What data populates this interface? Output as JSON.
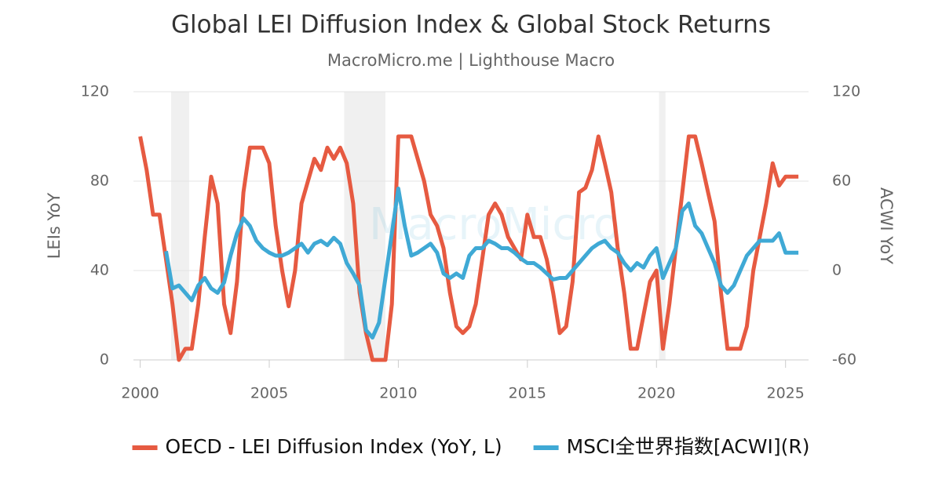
{
  "chart_data": {
    "type": "line",
    "title": "Global LEI Diffusion Index & Global Stock Returns",
    "subtitle": "MacroMicro.me | Lighthouse Macro",
    "watermark": "MacroMicro",
    "y_label": "LEIs YoY",
    "y2_label": "ACWI YoY",
    "xlim": [
      1999.8,
      2025.8
    ],
    "xticks": [
      2000,
      2005,
      2010,
      2015,
      2020,
      2025
    ],
    "ylim": [
      0,
      120
    ],
    "yticks": [
      0,
      40,
      80,
      120
    ],
    "y2lim": [
      -60,
      120
    ],
    "y2ticks": [
      -60,
      0,
      60,
      120
    ],
    "grid": true,
    "legend": "bottom",
    "shaded_x": [
      [
        2001.2,
        2001.9
      ],
      [
        2007.9,
        2009.5
      ],
      [
        2020.1,
        2020.35
      ]
    ],
    "x": [
      2000,
      2000.25,
      2000.5,
      2000.75,
      2001,
      2001.25,
      2001.5,
      2001.75,
      2002,
      2002.25,
      2002.5,
      2002.75,
      2003,
      2003.25,
      2003.5,
      2003.75,
      2004,
      2004.25,
      2004.5,
      2004.75,
      2005,
      2005.25,
      2005.5,
      2005.75,
      2006,
      2006.25,
      2006.5,
      2006.75,
      2007,
      2007.25,
      2007.5,
      2007.75,
      2008,
      2008.25,
      2008.5,
      2008.75,
      2009,
      2009.25,
      2009.5,
      2009.75,
      2010,
      2010.25,
      2010.5,
      2010.75,
      2011,
      2011.25,
      2011.5,
      2011.75,
      2012,
      2012.25,
      2012.5,
      2012.75,
      2013,
      2013.25,
      2013.5,
      2013.75,
      2014,
      2014.25,
      2014.5,
      2014.75,
      2015,
      2015.25,
      2015.5,
      2015.75,
      2016,
      2016.25,
      2016.5,
      2016.75,
      2017,
      2017.25,
      2017.5,
      2017.75,
      2018,
      2018.25,
      2018.5,
      2018.75,
      2019,
      2019.25,
      2019.5,
      2019.75,
      2020,
      2020.25,
      2020.5,
      2020.75,
      2021,
      2021.25,
      2021.5,
      2021.75,
      2022,
      2022.25,
      2022.5,
      2022.75,
      2023,
      2023.25,
      2023.5,
      2023.75,
      2024,
      2024.25,
      2024.5,
      2024.75,
      2025,
      2025.25,
      2025.5
    ],
    "series": [
      {
        "name": "OECD - LEI Diffusion Index (YoY, L)",
        "color": "#e65a41",
        "axis": "y",
        "values": [
          100,
          85,
          65,
          65,
          45,
          25,
          0,
          5,
          5,
          25,
          55,
          82,
          70,
          25,
          12,
          35,
          75,
          95,
          95,
          95,
          88,
          60,
          40,
          24,
          40,
          70,
          80,
          90,
          85,
          95,
          90,
          95,
          88,
          70,
          30,
          12,
          0,
          0,
          0,
          25,
          100,
          100,
          100,
          90,
          80,
          65,
          60,
          50,
          30,
          15,
          12,
          15,
          25,
          45,
          65,
          70,
          65,
          55,
          50,
          45,
          65,
          55,
          55,
          45,
          30,
          12,
          15,
          35,
          75,
          77,
          85,
          100,
          88,
          75,
          50,
          30,
          5,
          5,
          20,
          35,
          40,
          5,
          25,
          50,
          75,
          100,
          100,
          88,
          75,
          62,
          30,
          5,
          5,
          5,
          15,
          40,
          55,
          70,
          88,
          78,
          82,
          82,
          82
        ]
      },
      {
        "name": "MSCI全世界指数[ACWI](R)",
        "color": "#3fa9d5",
        "axis": "y2",
        "values": [
          null,
          null,
          null,
          null,
          13,
          -12,
          -10,
          -15,
          -20,
          -10,
          -5,
          -12,
          -15,
          -8,
          10,
          25,
          35,
          30,
          20,
          15,
          12,
          10,
          10,
          12,
          15,
          18,
          12,
          18,
          20,
          17,
          22,
          18,
          5,
          -2,
          -10,
          -40,
          -45,
          -35,
          -5,
          25,
          55,
          30,
          10,
          12,
          15,
          18,
          12,
          -2,
          -5,
          -2,
          -5,
          10,
          15,
          15,
          20,
          18,
          15,
          15,
          12,
          8,
          5,
          5,
          2,
          -2,
          -6,
          -5,
          -5,
          0,
          5,
          10,
          15,
          18,
          20,
          15,
          12,
          5,
          0,
          5,
          2,
          10,
          15,
          -5,
          5,
          15,
          40,
          45,
          30,
          25,
          15,
          5,
          -10,
          -15,
          -10,
          0,
          10,
          15,
          20,
          20,
          20,
          25,
          12,
          12,
          12
        ]
      }
    ]
  }
}
